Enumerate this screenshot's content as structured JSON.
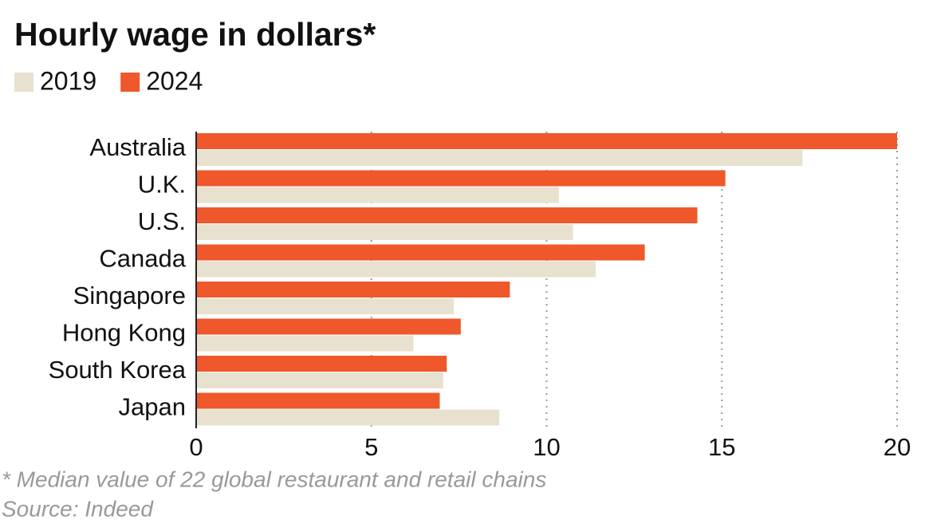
{
  "chart_data": {
    "type": "hbar",
    "title": "Hourly wage in dollars*",
    "categories": [
      "Australia",
      "U.K.",
      "U.S.",
      "Canada",
      "Singapore",
      "Hong Kong",
      "South Korea",
      "Japan"
    ],
    "series": [
      {
        "name": "2019",
        "color": "#e8e1cf",
        "values": [
          17.3,
          10.35,
          10.75,
          11.4,
          7.35,
          6.2,
          7.05,
          8.65
        ]
      },
      {
        "name": "2024",
        "color": "#ee582b",
        "values": [
          20.0,
          15.1,
          14.3,
          12.8,
          8.95,
          7.55,
          7.15,
          6.95
        ]
      }
    ],
    "xlim": [
      0,
      20
    ],
    "xticks": [
      0,
      5,
      10,
      15,
      20
    ],
    "grid": true,
    "footnote": "* Median value of 22 global restaurant and retail chains",
    "source": "Source: Indeed"
  }
}
